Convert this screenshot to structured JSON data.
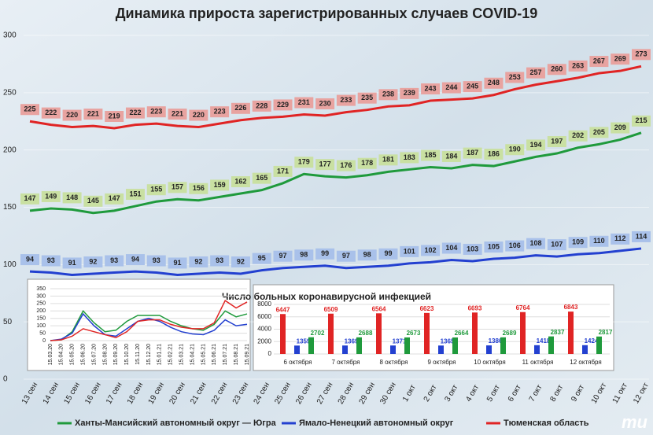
{
  "chart_data": [
    {
      "type": "line",
      "title": "Динамика прироста зарегистрированных случаев COVID-19",
      "categories": [
        "13 сен",
        "14 сен",
        "15 сен",
        "16 сен",
        "17 сен",
        "18 сен",
        "19 сен",
        "20 сен",
        "21 сен",
        "22 сен",
        "23 сен",
        "24 сен",
        "25 сен",
        "26 сен",
        "27 сен",
        "28 сен",
        "29 сен",
        "30 сен",
        "1 окт",
        "2 окт",
        "3 окт",
        "4 окт",
        "5 окт",
        "6 окт",
        "7 окт",
        "8 окт",
        "9 окт",
        "10 окт",
        "11 окт",
        "12 окт"
      ],
      "series": [
        {
          "name": "Ханты-Мансийский автономный округ — Югра",
          "color": "#1f9a3c",
          "label_color": "#c9e0a2",
          "values": [
            147,
            149,
            148,
            145,
            147,
            151,
            155,
            157,
            156,
            159,
            162,
            165,
            171,
            179,
            177,
            176,
            178,
            181,
            183,
            185,
            184,
            187,
            186,
            190,
            194,
            197,
            202,
            205,
            209,
            215
          ]
        },
        {
          "name": "Ямало-Ненецкий автономный округ",
          "color": "#2340d0",
          "label_color": "#a9c1ea",
          "values": [
            94,
            93,
            91,
            92,
            93,
            94,
            93,
            91,
            92,
            93,
            92,
            95,
            97,
            98,
            99,
            97,
            98,
            99,
            101,
            102,
            104,
            103,
            105,
            106,
            108,
            107,
            109,
            110,
            112,
            114
          ]
        },
        {
          "name": "Тюменская область",
          "color": "#e02424",
          "label_color": "#e8a3a0",
          "values": [
            225,
            222,
            220,
            221,
            219,
            222,
            223,
            221,
            220,
            223,
            226,
            228,
            229,
            231,
            230,
            233,
            235,
            238,
            239,
            243,
            244,
            245,
            248,
            253,
            257,
            260,
            263,
            267,
            269,
            273
          ]
        }
      ],
      "ylim": [
        0,
        300
      ],
      "yticks": [
        0,
        50,
        100,
        150,
        200,
        250,
        300
      ],
      "grid": true,
      "logo": "mu"
    },
    {
      "type": "line",
      "categories": [
        "15.03.20",
        "15.04.20",
        "15.05.20",
        "15.06.20",
        "15.07.20",
        "15.08.20",
        "15.09.20",
        "15.10.20",
        "15.11.20",
        "15.12.20",
        "15.01.21",
        "15.02.21",
        "15.03.21",
        "15.04.21",
        "15.05.21",
        "15.06.21",
        "15.07.21",
        "15.08.21",
        "15.09.21"
      ],
      "series": [
        {
          "color": "#1f9a3c",
          "values": [
            0,
            5,
            60,
            200,
            120,
            60,
            70,
            130,
            170,
            170,
            170,
            130,
            100,
            80,
            70,
            110,
            200,
            160,
            180
          ]
        },
        {
          "color": "#2340d0",
          "values": [
            0,
            10,
            50,
            180,
            100,
            40,
            30,
            80,
            130,
            150,
            130,
            90,
            60,
            45,
            40,
            70,
            140,
            100,
            110
          ]
        },
        {
          "color": "#e02424",
          "values": [
            0,
            5,
            30,
            80,
            60,
            40,
            20,
            60,
            130,
            140,
            140,
            110,
            90,
            80,
            80,
            120,
            270,
            220,
            260
          ]
        }
      ],
      "ylim": [
        0,
        350
      ],
      "yticks": [
        0,
        50,
        100,
        150,
        200,
        250,
        300,
        350
      ],
      "grid": true
    },
    {
      "type": "bar",
      "title": "Число больных коронавирусной инфекцией",
      "categories": [
        "6 октября",
        "7 октября",
        "8 октября",
        "9 октября",
        "10 октября",
        "11 октября",
        "12 октября"
      ],
      "series": [
        {
          "color": "#e02424",
          "values": [
            6447,
            6509,
            6564,
            6623,
            6693,
            6764,
            6843
          ]
        },
        {
          "color": "#2340d0",
          "values": [
            1359,
            1369,
            1371,
            1365,
            1386,
            1418,
            1424
          ]
        },
        {
          "color": "#1f9a3c",
          "values": [
            2702,
            2688,
            2673,
            2664,
            2689,
            2837,
            2817
          ]
        }
      ],
      "ylim": [
        0,
        8000
      ],
      "yticks": [
        0,
        2000,
        4000,
        6000,
        8000
      ],
      "grid": true
    }
  ]
}
